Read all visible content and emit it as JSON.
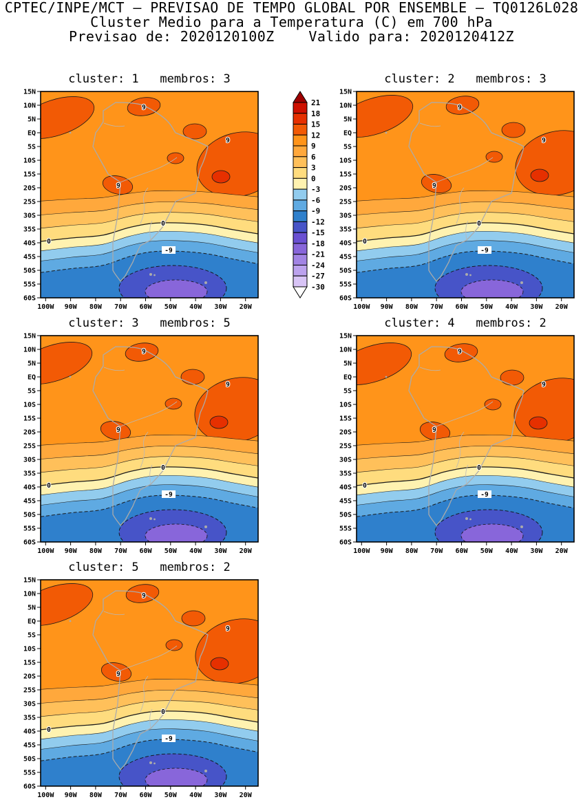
{
  "header": {
    "line1": "CPTEC/INPE/MCT — PREVISAO DE TEMPO GLOBAL POR ENSEMBLE — TQ0126L028",
    "line2": "Cluster Medio para a Temperatura (C) em 700 hPa",
    "line3": "Previsao de: 2020120100Z    Valido para: 2020120412Z"
  },
  "chart_data": {
    "type": "heatmap",
    "title": "Cluster Medio para a Temperatura (C) em 700 hPa",
    "model": "TQ0126L028",
    "institution": "CPTEC/INPE/MCT",
    "forecast_init": "2020120100Z",
    "forecast_valid": "2020120412Z",
    "variable": "Temperatura (C)",
    "level": "700 hPa",
    "panels": [
      {
        "title": "cluster: 1   membros: 3",
        "cluster": 1,
        "membros": 3
      },
      {
        "title": "cluster: 2   membros: 3",
        "cluster": 2,
        "membros": 3
      },
      {
        "title": "cluster: 3   membros: 5",
        "cluster": 3,
        "membros": 5
      },
      {
        "title": "cluster: 4   membros: 2",
        "cluster": 4,
        "membros": 2
      },
      {
        "title": "cluster: 5   membros: 2",
        "cluster": 5,
        "membros": 2
      }
    ],
    "lat_ticks": [
      "15N",
      "10N",
      "5N",
      "EQ",
      "5S",
      "10S",
      "15S",
      "20S",
      "25S",
      "30S",
      "35S",
      "40S",
      "45S",
      "50S",
      "55S",
      "60S"
    ],
    "lon_ticks": [
      "100W",
      "90W",
      "80W",
      "70W",
      "60W",
      "50W",
      "40W",
      "30W",
      "20W"
    ],
    "lat_range": [
      "15N",
      "60S"
    ],
    "lon_range": [
      "100W",
      "20W"
    ],
    "contour_labels": [
      "9",
      "0",
      "-9"
    ],
    "contour_interval": 3,
    "legend_position": "between top panels, centered",
    "grid": "off",
    "colorbar": {
      "levels": [
        21,
        18,
        15,
        12,
        9,
        6,
        3,
        0,
        -3,
        -6,
        -9,
        -12,
        -15,
        -18,
        -21,
        -24,
        -27,
        -30
      ],
      "colors": [
        "#9E0000",
        "#CE1000",
        "#E63000",
        "#F25A05",
        "#FF941A",
        "#FFA83C",
        "#FFC05A",
        "#FFDC7E",
        "#FFF2B0",
        "#92CCEE",
        "#5FAAE2",
        "#2F80CC",
        "#4754C8",
        "#6A50D2",
        "#8866DA",
        "#A284E4",
        "#BCA2EE",
        "#D8C4F6",
        "#FFFFFF"
      ]
    },
    "map_region": "South America",
    "field_pattern": "warm (9 to 15 C) over tropical South America and adjacent oceans with embedded >9C cells, temperatures decreasing southward through 0C near 35S-40S to below -12C (purple core) near 50W/55S"
  }
}
